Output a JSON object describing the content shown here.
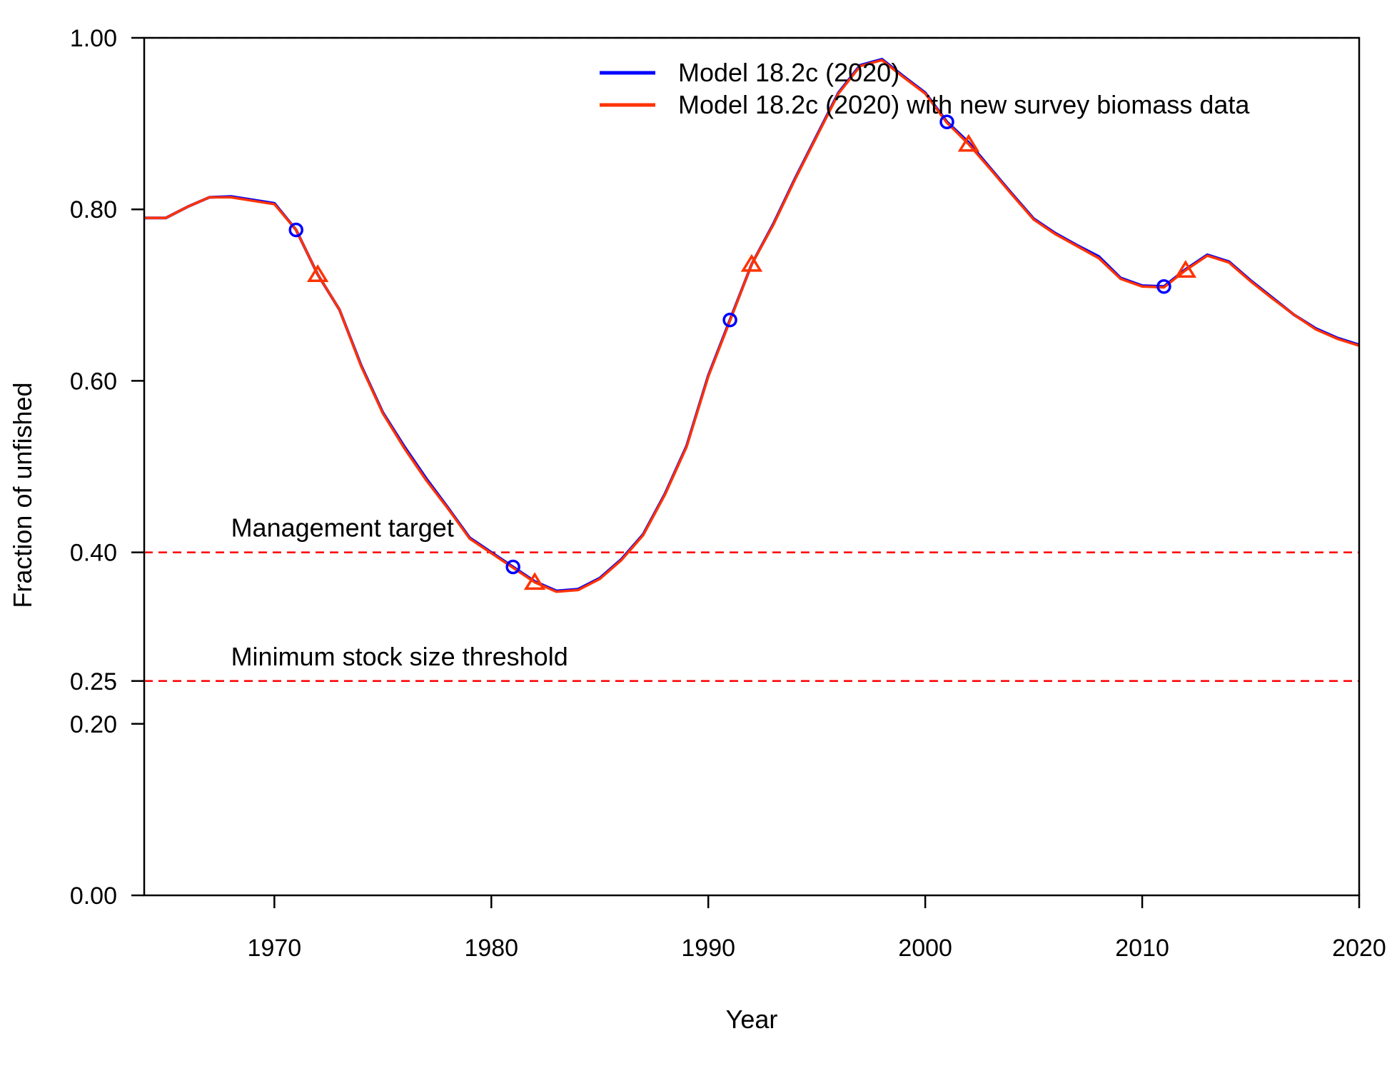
{
  "chart_data": {
    "type": "line",
    "xlabel": "Year",
    "ylabel": "Fraction of unfished",
    "xlim": [
      1964,
      2020
    ],
    "ylim": [
      0,
      1
    ],
    "x_ticks": [
      1970,
      1980,
      1990,
      2000,
      2010,
      2020
    ],
    "y_ticks": [
      0.0,
      0.2,
      0.25,
      0.4,
      0.6,
      0.8,
      1.0
    ],
    "y_tick_labels": [
      "0.00",
      "0.20",
      "0.25",
      "0.40",
      "0.60",
      "0.80",
      "1.00"
    ],
    "legend_position": "top-right",
    "reference_lines": [
      {
        "y": 1.0,
        "label": "",
        "color": "#bdbdbd"
      },
      {
        "y": 0.4,
        "label": "Management target",
        "color": "#ff0000"
      },
      {
        "y": 0.25,
        "label": "Minimum stock size threshold",
        "color": "#ff0000"
      }
    ],
    "series": [
      {
        "name": "Model 18.2c (2020)",
        "color": "#0000ff",
        "marker": "circle",
        "marker_x": [
          1971,
          1981,
          1991,
          2001,
          2011
        ],
        "x": [
          1964,
          1965,
          1966,
          1967,
          1968,
          1969,
          1970,
          1971,
          1972,
          1973,
          1974,
          1975,
          1976,
          1977,
          1978,
          1979,
          1980,
          1981,
          1982,
          1983,
          1984,
          1985,
          1986,
          1987,
          1988,
          1989,
          1990,
          1991,
          1992,
          1993,
          1994,
          1995,
          1996,
          1997,
          1998,
          1999,
          2000,
          2001,
          2002,
          2003,
          2004,
          2005,
          2006,
          2007,
          2008,
          2009,
          2010,
          2011,
          2012,
          2013,
          2014,
          2015,
          2016,
          2017,
          2018,
          2019,
          2020
        ],
        "y": [
          0.79,
          0.79,
          0.803,
          0.814,
          0.815,
          0.811,
          0.807,
          0.776,
          0.724,
          0.683,
          0.618,
          0.563,
          0.523,
          0.486,
          0.452,
          0.417,
          0.4,
          0.383,
          0.366,
          0.355,
          0.357,
          0.37,
          0.392,
          0.421,
          0.468,
          0.524,
          0.606,
          0.671,
          0.736,
          0.783,
          0.836,
          0.886,
          0.936,
          0.968,
          0.975,
          0.955,
          0.936,
          0.902,
          0.878,
          0.848,
          0.818,
          0.789,
          0.772,
          0.758,
          0.745,
          0.72,
          0.711,
          0.71,
          0.73,
          0.747,
          0.739,
          0.717,
          0.697,
          0.677,
          0.661,
          0.65,
          0.642
        ]
      },
      {
        "name": "Model 18.2c (2020) with new survey biomass data",
        "color": "#ff3300",
        "marker": "triangle",
        "marker_x": [
          1972,
          1982,
          1992,
          2002,
          2012
        ],
        "x": [
          1964,
          1965,
          1966,
          1967,
          1968,
          1969,
          1970,
          1971,
          1972,
          1973,
          1974,
          1975,
          1976,
          1977,
          1978,
          1979,
          1980,
          1981,
          1982,
          1983,
          1984,
          1985,
          1986,
          1987,
          1988,
          1989,
          1990,
          1991,
          1992,
          1993,
          1994,
          1995,
          1996,
          1997,
          1998,
          1999,
          2000,
          2001,
          2002,
          2003,
          2004,
          2005,
          2006,
          2007,
          2008,
          2009,
          2010,
          2011,
          2012,
          2013,
          2014,
          2015,
          2016,
          2017,
          2018,
          2019,
          2020
        ],
        "y": [
          0.79,
          0.79,
          0.803,
          0.814,
          0.814,
          0.81,
          0.806,
          0.776,
          0.724,
          0.683,
          0.617,
          0.562,
          0.521,
          0.484,
          0.451,
          0.416,
          0.399,
          0.382,
          0.365,
          0.354,
          0.356,
          0.369,
          0.391,
          0.42,
          0.467,
          0.523,
          0.605,
          0.67,
          0.736,
          0.782,
          0.835,
          0.885,
          0.935,
          0.967,
          0.974,
          0.954,
          0.935,
          0.901,
          0.876,
          0.847,
          0.817,
          0.788,
          0.771,
          0.757,
          0.743,
          0.719,
          0.71,
          0.709,
          0.729,
          0.746,
          0.738,
          0.716,
          0.696,
          0.677,
          0.66,
          0.649,
          0.641
        ]
      }
    ]
  }
}
